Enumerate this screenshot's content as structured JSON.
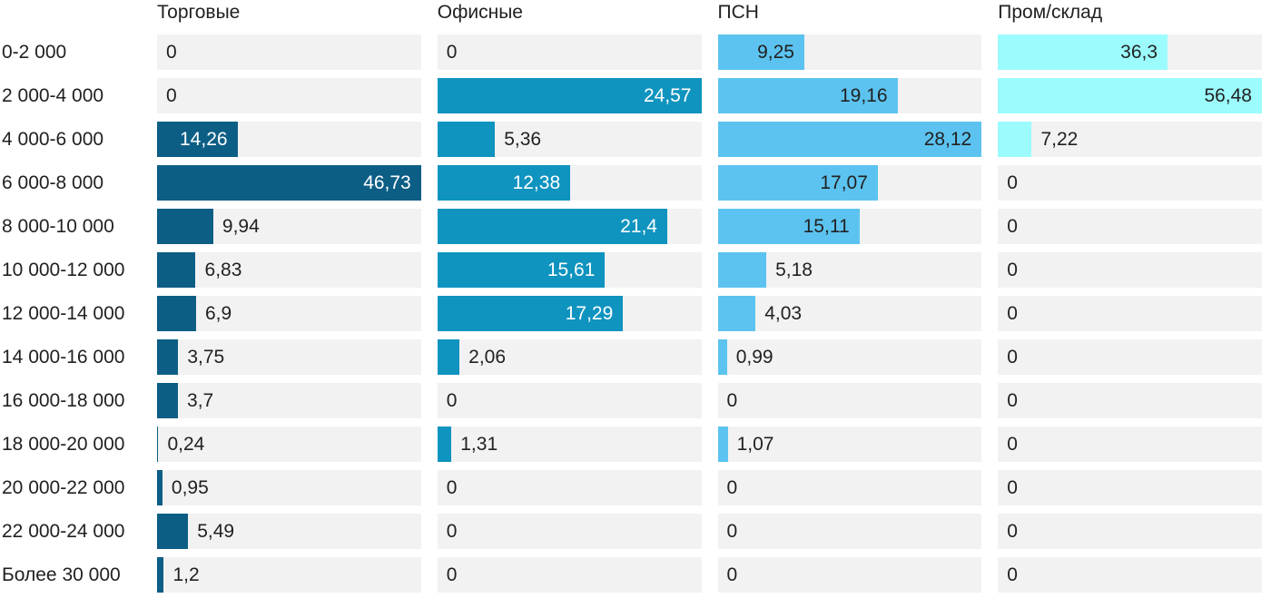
{
  "chart_data": {
    "type": "bar",
    "orientation": "horizontal",
    "title": "",
    "xlabel": "",
    "ylabel": "",
    "value_scaling": "per-column-max",
    "decimal_separator": ",",
    "grid": false,
    "legend_position": "column-headers",
    "track_color": "#f2f2f2",
    "text_color": "#212121",
    "categories": [
      "0-2 000",
      "2 000-4 000",
      "4 000-6 000",
      "6 000-8 000",
      "8 000-10 000",
      "10 000-12 000",
      "12 000-14 000",
      "14 000-16 000",
      "16 000-18 000",
      "18 000-20 000",
      "20 000-22 000",
      "22 000-24 000",
      "Более 30 000"
    ],
    "series": [
      {
        "name": "Торговые",
        "color": "#0d5e85",
        "label_color_inside": "#ffffff",
        "values": [
          0,
          0,
          14.26,
          46.73,
          9.94,
          6.83,
          6.9,
          3.75,
          3.7,
          0.24,
          0.95,
          5.49,
          1.2
        ]
      },
      {
        "name": "Офисные",
        "color": "#0f93bf",
        "label_color_inside": "#ffffff",
        "values": [
          0,
          24.57,
          5.36,
          12.38,
          21.4,
          15.61,
          17.29,
          2.06,
          0,
          1.31,
          0,
          0,
          0
        ]
      },
      {
        "name": "ПСН",
        "color": "#5cc3f0",
        "label_color_inside": "#212121",
        "values": [
          9.25,
          19.16,
          28.12,
          17.07,
          15.11,
          5.18,
          4.03,
          0.99,
          0,
          1.07,
          0,
          0,
          0
        ]
      },
      {
        "name": "Пром/склад",
        "color": "#9cfcfd",
        "label_color_inside": "#212121",
        "values": [
          36.3,
          56.48,
          7.22,
          0,
          0,
          0,
          0,
          0,
          0,
          0,
          0,
          0,
          0
        ]
      }
    ]
  }
}
